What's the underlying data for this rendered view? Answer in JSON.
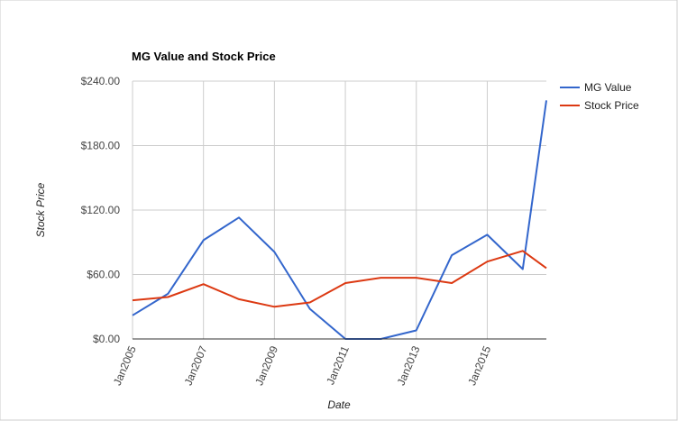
{
  "chart_data": {
    "type": "line",
    "title": "MG Value and Stock Price",
    "xlabel": "Date",
    "ylabel": "Stock Price",
    "x": [
      "2005-01",
      "2006-01",
      "2007-01",
      "2008-01",
      "2009-01",
      "2010-01",
      "2011-01",
      "2012-01",
      "2013-01",
      "2014-01",
      "2015-01",
      "2016-01",
      "2016-09"
    ],
    "x_ticks": [
      "Jan2005",
      "Jan2007",
      "Jan2009",
      "Jan2011",
      "Jan2013",
      "Jan2015"
    ],
    "y_ticks": [
      "$0.00",
      "$60.00",
      "$120.00",
      "$180.00",
      "$240.00"
    ],
    "ylim": [
      0,
      240
    ],
    "xlim": [
      "2005-01",
      "2016-09"
    ],
    "grid": true,
    "legend": "right",
    "series": [
      {
        "name": "MG Value",
        "color": "#3366cc",
        "values": [
          22,
          42,
          92,
          113,
          81,
          28,
          0,
          0,
          8,
          78,
          97,
          65,
          222
        ]
      },
      {
        "name": "Stock Price",
        "color": "#dc3912",
        "values": [
          36,
          39,
          51,
          37,
          30,
          34,
          52,
          57,
          57,
          52,
          72,
          82,
          66
        ]
      }
    ]
  }
}
